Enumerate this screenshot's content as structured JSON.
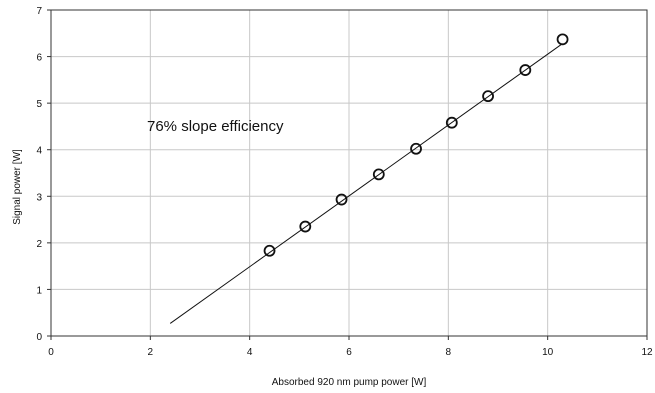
{
  "chart_data": {
    "type": "scatter",
    "xlabel": "Absorbed 920 nm pump power [W]",
    "ylabel": "Signal power [W]",
    "xlim": [
      0,
      12
    ],
    "ylim": [
      0,
      7
    ],
    "xticks": [
      "0",
      "2",
      "4",
      "6",
      "8",
      "10",
      "12"
    ],
    "yticks": [
      "0",
      "1",
      "2",
      "3",
      "4",
      "5",
      "6",
      "7"
    ],
    "grid": true,
    "annotation": "76% slope efficiency",
    "points": [
      {
        "x": 4.4,
        "y": 1.83
      },
      {
        "x": 5.12,
        "y": 2.35
      },
      {
        "x": 5.85,
        "y": 2.93
      },
      {
        "x": 6.6,
        "y": 3.47
      },
      {
        "x": 7.35,
        "y": 4.02
      },
      {
        "x": 8.07,
        "y": 4.58
      },
      {
        "x": 8.8,
        "y": 5.15
      },
      {
        "x": 9.55,
        "y": 5.71
      },
      {
        "x": 10.3,
        "y": 6.37
      }
    ],
    "fit_line": {
      "x": [
        2.4,
        10.3
      ],
      "y": [
        0.27,
        6.28
      ]
    }
  }
}
